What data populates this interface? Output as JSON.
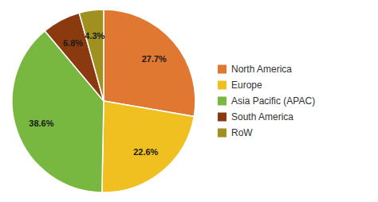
{
  "chart_data": {
    "type": "pie",
    "categories": [
      "North America",
      "Europe",
      "Asia Pacific (APAC)",
      "South America",
      "RoW"
    ],
    "values": [
      27.7,
      22.6,
      38.6,
      6.8,
      4.3
    ],
    "value_labels": [
      "27.7%",
      "22.6%",
      "38.6%",
      "6.8%",
      "4.3%"
    ],
    "colors": [
      "#E07832",
      "#F0C020",
      "#78B840",
      "#8B3A10",
      "#A09020"
    ],
    "data_labels": true,
    "legend": "right"
  }
}
